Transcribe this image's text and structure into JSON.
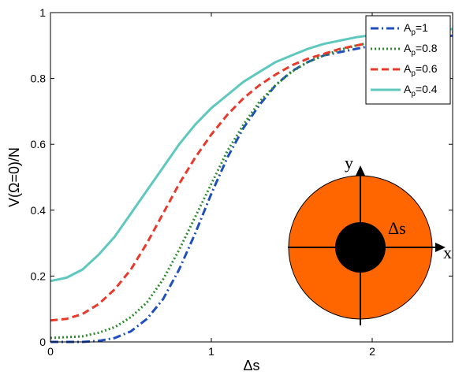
{
  "chart_data": {
    "type": "line",
    "title": "",
    "xlabel": "Δs",
    "ylabel": "V(Ω=0)/N",
    "xlim": [
      0,
      2.5
    ],
    "ylim": [
      0,
      1
    ],
    "x_ticks": [
      {
        "value": 0,
        "label": "0"
      },
      {
        "value": 1,
        "label": "1"
      },
      {
        "value": 2,
        "label": "2"
      }
    ],
    "y_ticks": [
      {
        "value": 0,
        "label": "0"
      },
      {
        "value": 0.2,
        "label": "0.2"
      },
      {
        "value": 0.4,
        "label": "0.4"
      },
      {
        "value": 0.6,
        "label": "0.6"
      },
      {
        "value": 0.8,
        "label": "0.8"
      },
      {
        "value": 1,
        "label": "1"
      }
    ],
    "grid": false,
    "legend_position": "top-right",
    "series": [
      {
        "name": "Ap=1",
        "legend_base": "A",
        "legend_sub": "p",
        "legend_tail": "=1",
        "color": "#1f4fbf",
        "dash": "dashdot",
        "x": [
          0,
          0.2,
          0.3,
          0.4,
          0.5,
          0.6,
          0.7,
          0.8,
          0.9,
          1.0,
          1.1,
          1.2,
          1.3,
          1.4,
          1.5,
          1.6,
          1.7,
          1.8,
          1.9,
          2.0,
          2.2,
          2.5
        ],
        "y": [
          0.0,
          0.0,
          0.003,
          0.012,
          0.032,
          0.07,
          0.13,
          0.22,
          0.33,
          0.45,
          0.56,
          0.65,
          0.72,
          0.78,
          0.822,
          0.85,
          0.87,
          0.88,
          0.89,
          0.9,
          0.915,
          0.93
        ]
      },
      {
        "name": "Ap=0.8",
        "legend_base": "A",
        "legend_sub": "p",
        "legend_tail": "=0.8",
        "color": "#2e8b2e",
        "dash": "dotted",
        "x": [
          0,
          0.2,
          0.3,
          0.4,
          0.5,
          0.6,
          0.7,
          0.8,
          0.9,
          1.0,
          1.1,
          1.2,
          1.3,
          1.4,
          1.5,
          1.6,
          1.7,
          1.8,
          1.9,
          2.0,
          2.2,
          2.5
        ],
        "y": [
          0.012,
          0.017,
          0.028,
          0.045,
          0.075,
          0.12,
          0.19,
          0.28,
          0.38,
          0.48,
          0.58,
          0.66,
          0.73,
          0.78,
          0.82,
          0.85,
          0.87,
          0.887,
          0.9,
          0.91,
          0.925,
          0.94
        ]
      },
      {
        "name": "Ap=0.6",
        "legend_base": "A",
        "legend_sub": "p",
        "legend_tail": "=0.6",
        "color": "#e8392b",
        "dash": "dashed",
        "x": [
          0,
          0.1,
          0.2,
          0.3,
          0.4,
          0.5,
          0.6,
          0.7,
          0.8,
          0.9,
          1.0,
          1.1,
          1.2,
          1.3,
          1.4,
          1.5,
          1.6,
          1.7,
          1.8,
          1.9,
          2.0,
          2.2,
          2.5
        ],
        "y": [
          0.065,
          0.07,
          0.085,
          0.115,
          0.16,
          0.22,
          0.3,
          0.39,
          0.48,
          0.56,
          0.63,
          0.69,
          0.74,
          0.78,
          0.812,
          0.84,
          0.86,
          0.875,
          0.89,
          0.9,
          0.91,
          0.928,
          0.945
        ]
      },
      {
        "name": "Ap=0.4",
        "legend_base": "A",
        "legend_sub": "p",
        "legend_tail": "=0.4",
        "color": "#5fc8be",
        "dash": "solid",
        "x": [
          0,
          0.1,
          0.2,
          0.3,
          0.4,
          0.5,
          0.6,
          0.7,
          0.8,
          0.9,
          1.0,
          1.1,
          1.2,
          1.3,
          1.4,
          1.5,
          1.6,
          1.7,
          1.8,
          1.9,
          2.0,
          2.2,
          2.5
        ],
        "y": [
          0.185,
          0.195,
          0.22,
          0.265,
          0.32,
          0.39,
          0.46,
          0.53,
          0.6,
          0.66,
          0.71,
          0.75,
          0.79,
          0.82,
          0.85,
          0.87,
          0.89,
          0.905,
          0.915,
          0.925,
          0.932,
          0.94,
          0.95
        ]
      }
    ]
  },
  "inset": {
    "y_axis_label": "y",
    "x_axis_label": "x",
    "shift_label": "Δs",
    "disk_color": "#ff6600",
    "core_color": "#000000"
  }
}
